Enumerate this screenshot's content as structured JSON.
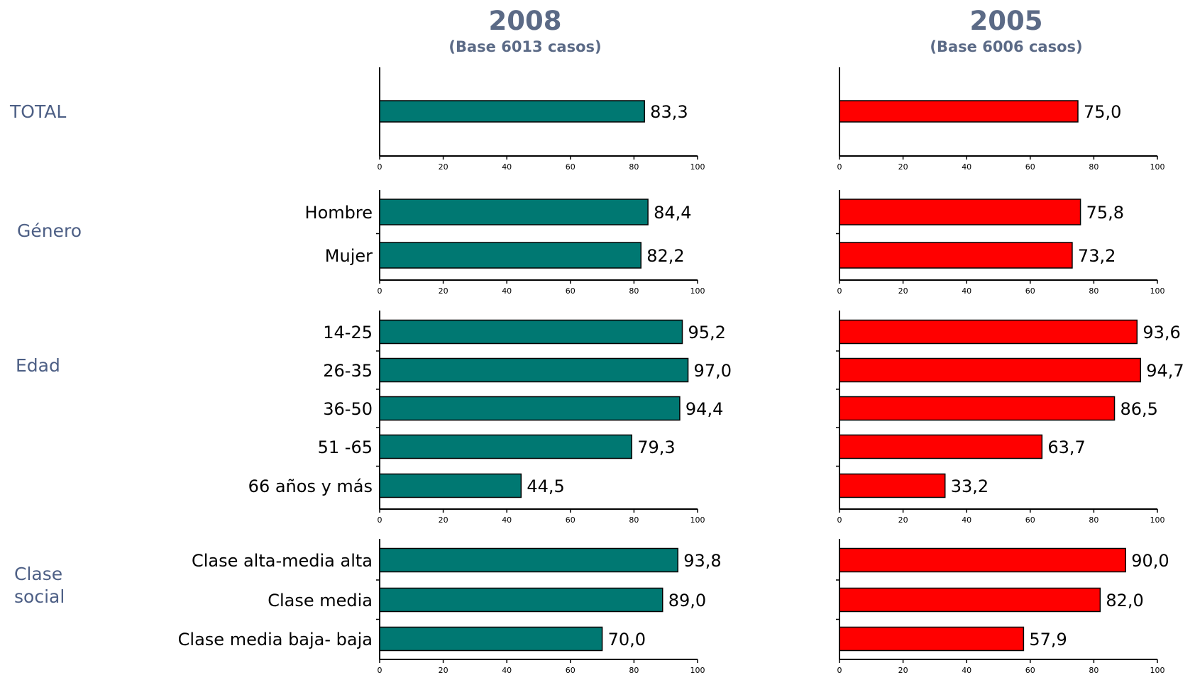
{
  "headers": [
    {
      "title": "2008",
      "subtitle": "(Base 6013 casos)"
    },
    {
      "title": "2005",
      "subtitle": "(Base 6006 casos)"
    }
  ],
  "colors": {
    "2008": "#007872",
    "2005": "#ff0000",
    "heading": "#5b6a86"
  },
  "chart_data": {
    "type": "bar",
    "orientation": "horizontal",
    "xlim": [
      0,
      100
    ],
    "ticks": [
      0,
      20,
      40,
      60,
      80,
      100
    ],
    "grid": false,
    "groups": [
      {
        "name": "TOTAL",
        "categories": [
          ""
        ],
        "series": [
          {
            "name": "2008",
            "values": [
              83.3
            ],
            "labels": [
              "83,3"
            ]
          },
          {
            "name": "2005",
            "values": [
              75.0
            ],
            "labels": [
              "75,0"
            ]
          }
        ]
      },
      {
        "name": "Género",
        "categories": [
          "Hombre",
          "Mujer"
        ],
        "series": [
          {
            "name": "2008",
            "values": [
              84.4,
              82.2
            ],
            "labels": [
              "84,4",
              "82,2"
            ]
          },
          {
            "name": "2005",
            "values": [
              75.8,
              73.2
            ],
            "labels": [
              "75,8",
              "73,2"
            ]
          }
        ]
      },
      {
        "name": "Edad",
        "categories": [
          "14-25",
          "26-35",
          "36-50",
          "51 -65",
          "66 años y más"
        ],
        "series": [
          {
            "name": "2008",
            "values": [
              95.2,
              97.0,
              94.4,
              79.3,
              44.5
            ],
            "labels": [
              "95,2",
              "97,0",
              "94,4",
              "79,3",
              "44,5"
            ]
          },
          {
            "name": "2005",
            "values": [
              93.6,
              94.7,
              86.5,
              63.7,
              33.2
            ],
            "labels": [
              "93,6",
              "94,7",
              "86,5",
              "63,7",
              "33,2"
            ]
          }
        ]
      },
      {
        "name": "Clase social",
        "categories": [
          "Clase alta-media alta",
          "Clase media",
          "Clase media baja- baja"
        ],
        "series": [
          {
            "name": "2008",
            "values": [
              93.8,
              89.0,
              70.0
            ],
            "labels": [
              "93,8",
              "89,0",
              "70,0"
            ]
          },
          {
            "name": "2005",
            "values": [
              90.0,
              82.0,
              57.9
            ],
            "labels": [
              "90,0",
              "82,0",
              "57,9"
            ]
          }
        ]
      }
    ]
  }
}
